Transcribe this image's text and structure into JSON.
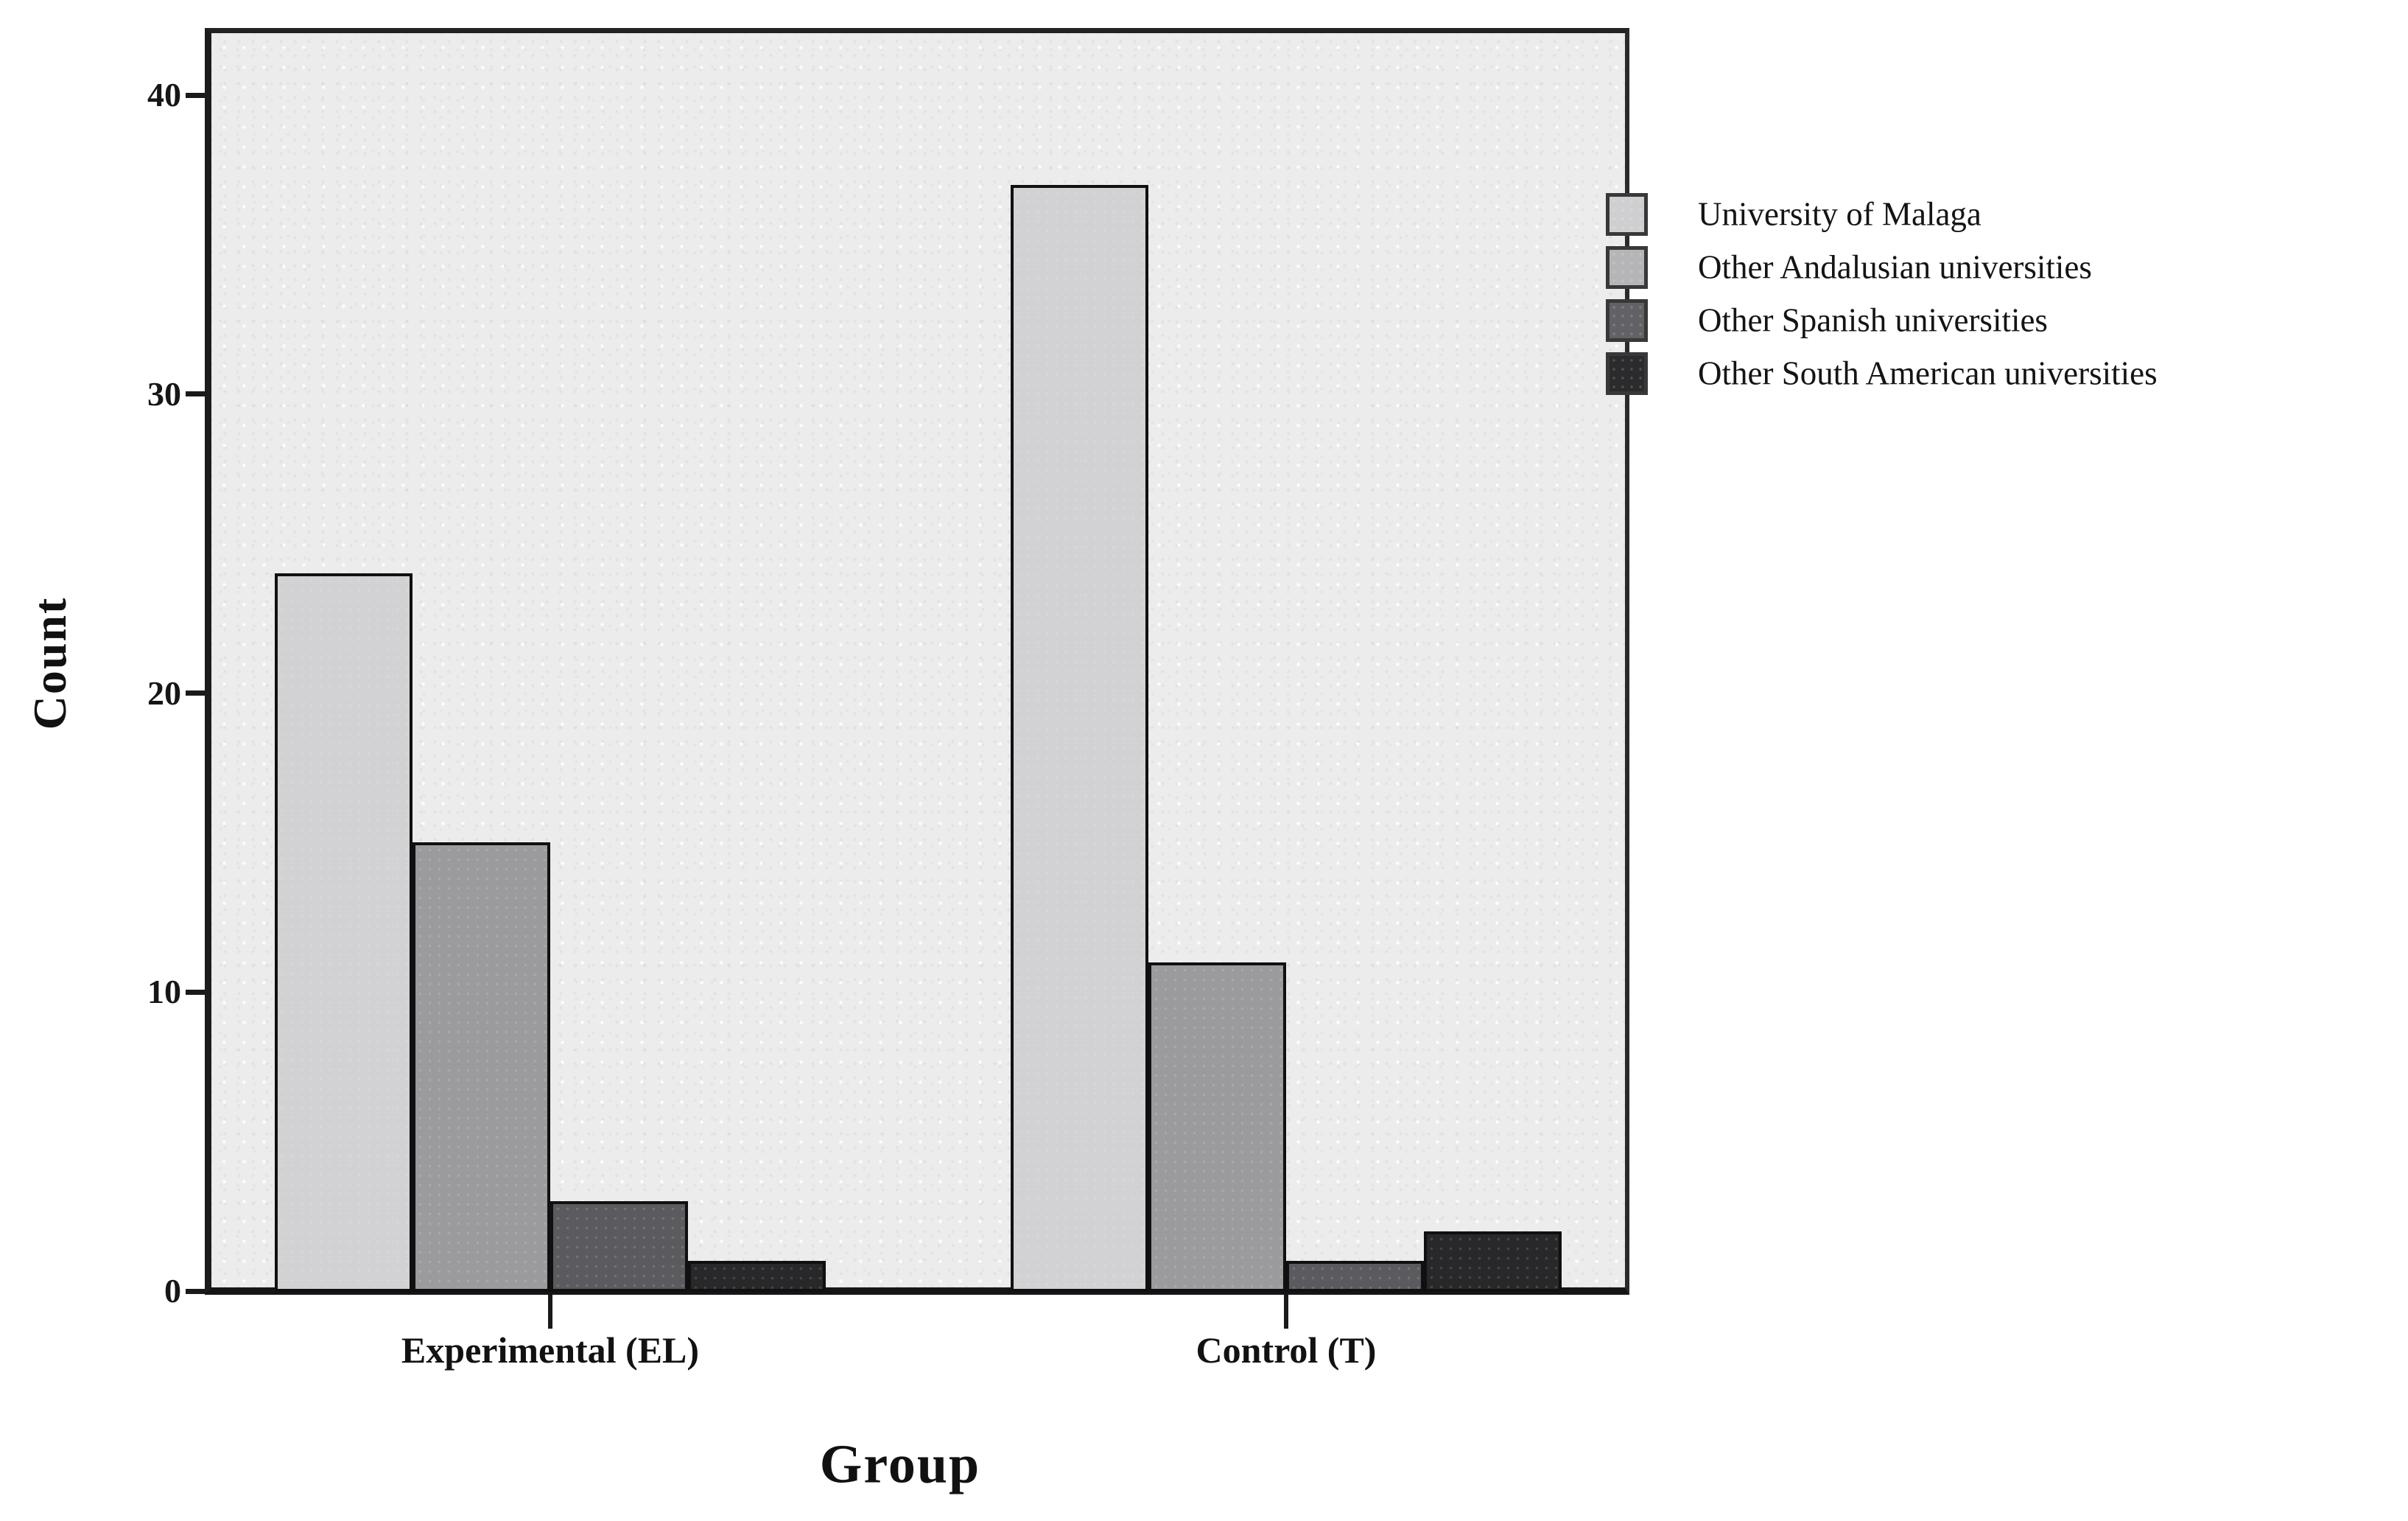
{
  "chart_data": {
    "type": "bar",
    "title": "",
    "xlabel": "Group",
    "ylabel": "Count",
    "categories": [
      "Experimental (EL)",
      "Control (T)"
    ],
    "series": [
      {
        "name": "University of Malaga",
        "values": [
          24,
          37
        ],
        "color": "#d2d2d4",
        "legend_color": "#cfcfd1"
      },
      {
        "name": "Other Andalusian universities",
        "values": [
          15,
          11
        ],
        "color": "#9b9b9e",
        "legend_color": "#b5b5b8"
      },
      {
        "name": "Other Spanish universities",
        "values": [
          3,
          1
        ],
        "color": "#5b5b5f",
        "legend_color": "#626266"
      },
      {
        "name": "Other South American universities",
        "values": [
          1,
          2
        ],
        "color": "#28282b",
        "legend_color": "#2b2b2e"
      }
    ],
    "y_ticks": [
      0,
      10,
      20,
      30,
      40
    ],
    "ylim": [
      0,
      42
    ],
    "grid": false,
    "legend_position": "right",
    "plot_bg": "#ececec",
    "bar_border": "#101010",
    "axis_color": "#1a1a1a"
  }
}
